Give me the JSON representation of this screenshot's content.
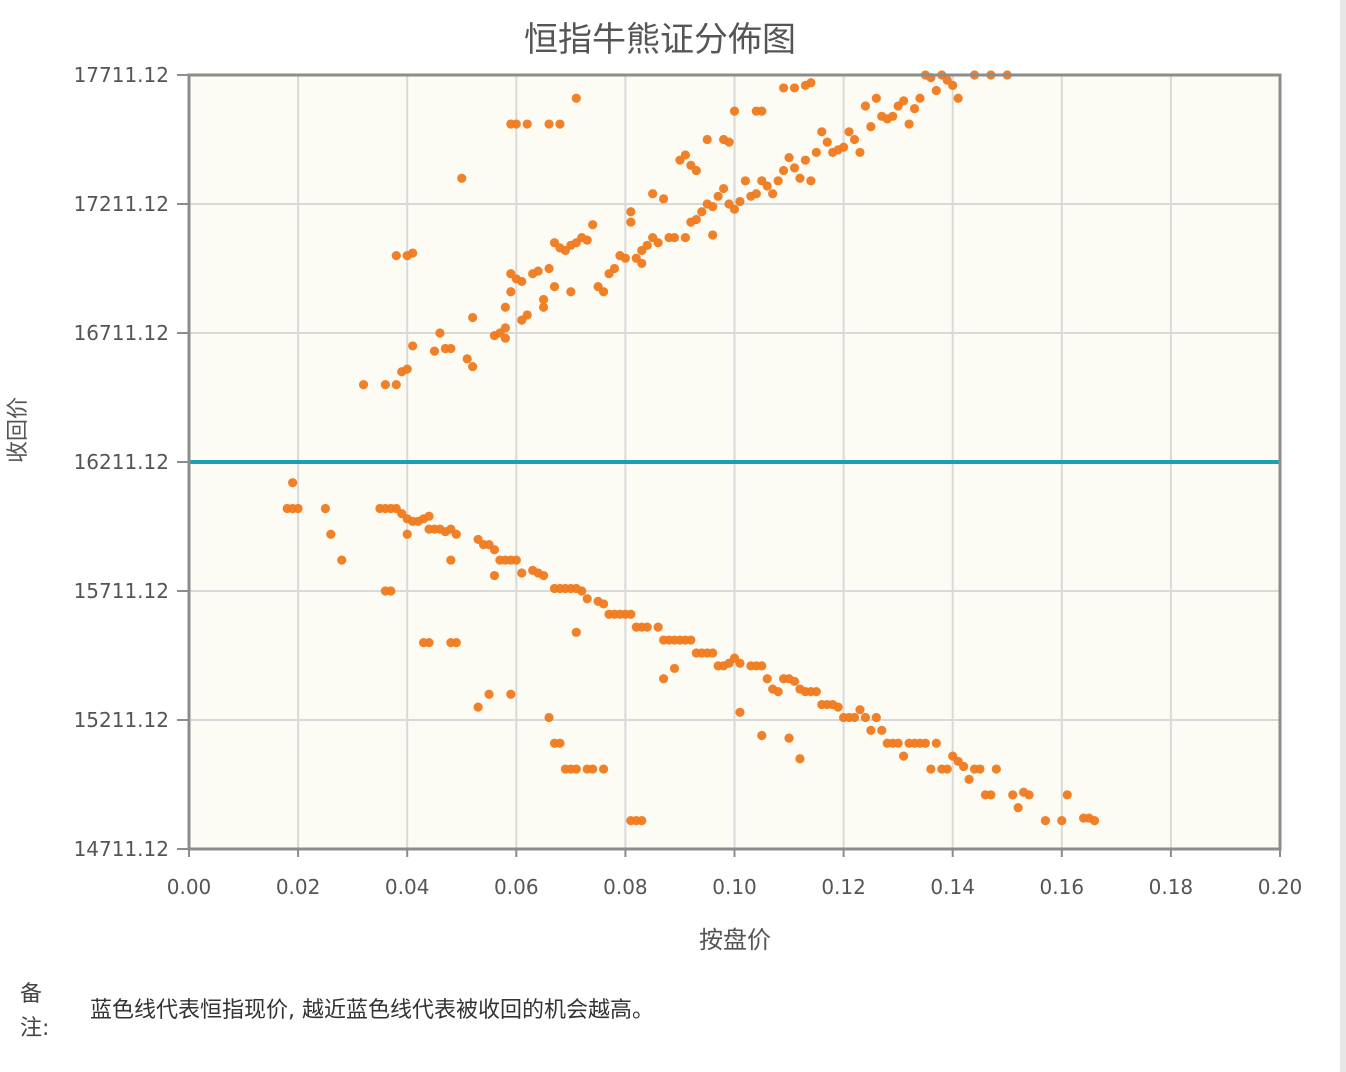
{
  "chart_data": {
    "type": "scatter",
    "title": "恒指牛熊证分佈图",
    "xlabel": "按盘价",
    "ylabel": "收回价",
    "xlim": [
      0,
      0.2
    ],
    "ylim": [
      14711.12,
      17711.12
    ],
    "x_ticks": [
      "0.00",
      "0.02",
      "0.04",
      "0.06",
      "0.08",
      "0.10",
      "0.12",
      "0.14",
      "0.16",
      "0.18",
      "0.20"
    ],
    "y_ticks": [
      "14711.12",
      "15211.12",
      "15711.12",
      "16211.12",
      "16711.12",
      "17211.12",
      "17711.12"
    ],
    "reference_line": {
      "y": 16211.12,
      "color": "#1aa0b3"
    },
    "grid": true,
    "colors": {
      "points": "#f07a1e",
      "plot_bg": "#fcfbf4",
      "grid": "#d9d9d9",
      "axis": "#8c8c8c"
    },
    "series": [
      {
        "points": [
          [
            0.032,
            16511
          ],
          [
            0.036,
            16511
          ],
          [
            0.038,
            16511
          ],
          [
            0.039,
            16561
          ],
          [
            0.04,
            16571
          ],
          [
            0.041,
            16661
          ],
          [
            0.038,
            17011
          ],
          [
            0.04,
            17011
          ],
          [
            0.041,
            17021
          ],
          [
            0.046,
            16711
          ],
          [
            0.045,
            16641
          ],
          [
            0.047,
            16651
          ],
          [
            0.048,
            16651
          ],
          [
            0.05,
            17311
          ],
          [
            0.051,
            16611
          ],
          [
            0.052,
            16581
          ],
          [
            0.052,
            16771
          ],
          [
            0.056,
            16701
          ],
          [
            0.057,
            16711
          ],
          [
            0.058,
            16691
          ],
          [
            0.058,
            16731
          ],
          [
            0.058,
            16811
          ],
          [
            0.059,
            16871
          ],
          [
            0.059,
            16941
          ],
          [
            0.06,
            16921
          ],
          [
            0.061,
            16911
          ],
          [
            0.061,
            16761
          ],
          [
            0.062,
            16781
          ],
          [
            0.063,
            16941
          ],
          [
            0.064,
            16951
          ],
          [
            0.065,
            16841
          ],
          [
            0.065,
            16811
          ],
          [
            0.066,
            16961
          ],
          [
            0.067,
            16891
          ],
          [
            0.067,
            17061
          ],
          [
            0.068,
            17041
          ],
          [
            0.069,
            17031
          ],
          [
            0.07,
            17051
          ],
          [
            0.07,
            16871
          ],
          [
            0.071,
            17061
          ],
          [
            0.072,
            17081
          ],
          [
            0.073,
            17071
          ],
          [
            0.074,
            17131
          ],
          [
            0.075,
            16891
          ],
          [
            0.076,
            16871
          ],
          [
            0.077,
            16941
          ],
          [
            0.078,
            16961
          ],
          [
            0.079,
            17011
          ],
          [
            0.08,
            17001
          ],
          [
            0.081,
            17141
          ],
          [
            0.081,
            17181
          ],
          [
            0.082,
            17001
          ],
          [
            0.083,
            16981
          ],
          [
            0.083,
            17031
          ],
          [
            0.084,
            17051
          ],
          [
            0.085,
            17251
          ],
          [
            0.085,
            17081
          ],
          [
            0.086,
            17061
          ],
          [
            0.087,
            17231
          ],
          [
            0.088,
            17081
          ],
          [
            0.089,
            17081
          ],
          [
            0.09,
            17381
          ],
          [
            0.091,
            17401
          ],
          [
            0.092,
            17361
          ],
          [
            0.093,
            17341
          ],
          [
            0.091,
            17081
          ],
          [
            0.092,
            17141
          ],
          [
            0.093,
            17151
          ],
          [
            0.094,
            17181
          ],
          [
            0.095,
            17211
          ],
          [
            0.096,
            17201
          ],
          [
            0.096,
            17091
          ],
          [
            0.097,
            17241
          ],
          [
            0.098,
            17271
          ],
          [
            0.099,
            17211
          ],
          [
            0.1,
            17191
          ],
          [
            0.101,
            17221
          ],
          [
            0.102,
            17301
          ],
          [
            0.103,
            17241
          ],
          [
            0.104,
            17251
          ],
          [
            0.105,
            17301
          ],
          [
            0.106,
            17281
          ],
          [
            0.107,
            17251
          ],
          [
            0.108,
            17301
          ],
          [
            0.109,
            17341
          ],
          [
            0.11,
            17391
          ],
          [
            0.111,
            17351
          ],
          [
            0.112,
            17311
          ],
          [
            0.113,
            17381
          ],
          [
            0.114,
            17301
          ],
          [
            0.115,
            17411
          ],
          [
            0.116,
            17491
          ],
          [
            0.117,
            17451
          ],
          [
            0.118,
            17411
          ],
          [
            0.119,
            17421
          ],
          [
            0.12,
            17431
          ],
          [
            0.121,
            17491
          ],
          [
            0.122,
            17461
          ],
          [
            0.123,
            17411
          ],
          [
            0.124,
            17591
          ],
          [
            0.125,
            17511
          ],
          [
            0.126,
            17621
          ],
          [
            0.127,
            17551
          ],
          [
            0.128,
            17541
          ],
          [
            0.129,
            17551
          ],
          [
            0.13,
            17591
          ],
          [
            0.131,
            17611
          ],
          [
            0.132,
            17521
          ],
          [
            0.133,
            17581
          ],
          [
            0.134,
            17621
          ],
          [
            0.135,
            17711
          ],
          [
            0.136,
            17701
          ],
          [
            0.137,
            17651
          ],
          [
            0.138,
            17711
          ],
          [
            0.139,
            17691
          ],
          [
            0.14,
            17671
          ],
          [
            0.141,
            17621
          ],
          [
            0.144,
            17711
          ],
          [
            0.147,
            17711
          ],
          [
            0.15,
            17711
          ],
          [
            0.099,
            17451
          ],
          [
            0.1,
            17571
          ],
          [
            0.104,
            17571
          ],
          [
            0.105,
            17571
          ],
          [
            0.109,
            17661
          ],
          [
            0.111,
            17661
          ],
          [
            0.113,
            17671
          ],
          [
            0.114,
            17681
          ],
          [
            0.059,
            17521
          ],
          [
            0.06,
            17521
          ],
          [
            0.062,
            17521
          ],
          [
            0.066,
            17521
          ],
          [
            0.068,
            17521
          ],
          [
            0.071,
            17621
          ],
          [
            0.095,
            17461
          ],
          [
            0.098,
            17461
          ]
        ]
      },
      {
        "points": [
          [
            0.018,
            16031
          ],
          [
            0.019,
            16031
          ],
          [
            0.02,
            16031
          ],
          [
            0.019,
            16131
          ],
          [
            0.025,
            16031
          ],
          [
            0.026,
            15931
          ],
          [
            0.028,
            15831
          ],
          [
            0.035,
            16031
          ],
          [
            0.036,
            16031
          ],
          [
            0.037,
            16031
          ],
          [
            0.038,
            16031
          ],
          [
            0.039,
            16011
          ],
          [
            0.04,
            15991
          ],
          [
            0.04,
            15931
          ],
          [
            0.041,
            15981
          ],
          [
            0.042,
            15981
          ],
          [
            0.043,
            15991
          ],
          [
            0.044,
            16001
          ],
          [
            0.044,
            15951
          ],
          [
            0.045,
            15951
          ],
          [
            0.046,
            15951
          ],
          [
            0.047,
            15941
          ],
          [
            0.048,
            15951
          ],
          [
            0.049,
            15931
          ],
          [
            0.048,
            15831
          ],
          [
            0.036,
            15711
          ],
          [
            0.037,
            15711
          ],
          [
            0.043,
            15511
          ],
          [
            0.044,
            15511
          ],
          [
            0.048,
            15511
          ],
          [
            0.049,
            15511
          ],
          [
            0.053,
            15911
          ],
          [
            0.054,
            15891
          ],
          [
            0.055,
            15891
          ],
          [
            0.056,
            15871
          ],
          [
            0.056,
            15771
          ],
          [
            0.057,
            15831
          ],
          [
            0.058,
            15831
          ],
          [
            0.059,
            15831
          ],
          [
            0.06,
            15831
          ],
          [
            0.061,
            15781
          ],
          [
            0.063,
            15791
          ],
          [
            0.064,
            15781
          ],
          [
            0.065,
            15771
          ],
          [
            0.067,
            15721
          ],
          [
            0.068,
            15721
          ],
          [
            0.069,
            15721
          ],
          [
            0.07,
            15721
          ],
          [
            0.071,
            15721
          ],
          [
            0.072,
            15711
          ],
          [
            0.073,
            15681
          ],
          [
            0.075,
            15671
          ],
          [
            0.076,
            15661
          ],
          [
            0.077,
            15621
          ],
          [
            0.078,
            15621
          ],
          [
            0.079,
            15621
          ],
          [
            0.08,
            15621
          ],
          [
            0.081,
            15621
          ],
          [
            0.082,
            15571
          ],
          [
            0.083,
            15571
          ],
          [
            0.084,
            15571
          ],
          [
            0.086,
            15571
          ],
          [
            0.087,
            15521
          ],
          [
            0.088,
            15521
          ],
          [
            0.089,
            15521
          ],
          [
            0.09,
            15521
          ],
          [
            0.091,
            15521
          ],
          [
            0.092,
            15521
          ],
          [
            0.093,
            15471
          ],
          [
            0.094,
            15471
          ],
          [
            0.095,
            15471
          ],
          [
            0.096,
            15471
          ],
          [
            0.097,
            15421
          ],
          [
            0.098,
            15421
          ],
          [
            0.099,
            15431
          ],
          [
            0.1,
            15451
          ],
          [
            0.101,
            15431
          ],
          [
            0.103,
            15421
          ],
          [
            0.104,
            15421
          ],
          [
            0.105,
            15421
          ],
          [
            0.106,
            15371
          ],
          [
            0.107,
            15331
          ],
          [
            0.108,
            15321
          ],
          [
            0.109,
            15371
          ],
          [
            0.11,
            15371
          ],
          [
            0.111,
            15361
          ],
          [
            0.112,
            15331
          ],
          [
            0.113,
            15321
          ],
          [
            0.114,
            15321
          ],
          [
            0.115,
            15321
          ],
          [
            0.116,
            15271
          ],
          [
            0.117,
            15271
          ],
          [
            0.118,
            15271
          ],
          [
            0.119,
            15261
          ],
          [
            0.12,
            15221
          ],
          [
            0.121,
            15221
          ],
          [
            0.122,
            15221
          ],
          [
            0.123,
            15251
          ],
          [
            0.124,
            15221
          ],
          [
            0.125,
            15171
          ],
          [
            0.126,
            15221
          ],
          [
            0.127,
            15171
          ],
          [
            0.128,
            15121
          ],
          [
            0.129,
            15121
          ],
          [
            0.13,
            15121
          ],
          [
            0.131,
            15071
          ],
          [
            0.132,
            15121
          ],
          [
            0.133,
            15121
          ],
          [
            0.134,
            15121
          ],
          [
            0.135,
            15121
          ],
          [
            0.136,
            15021
          ],
          [
            0.137,
            15121
          ],
          [
            0.138,
            15021
          ],
          [
            0.139,
            15021
          ],
          [
            0.14,
            15071
          ],
          [
            0.141,
            15051
          ],
          [
            0.142,
            15031
          ],
          [
            0.143,
            14981
          ],
          [
            0.144,
            15021
          ],
          [
            0.145,
            15021
          ],
          [
            0.146,
            14921
          ],
          [
            0.147,
            14921
          ],
          [
            0.148,
            15021
          ],
          [
            0.151,
            14921
          ],
          [
            0.152,
            14871
          ],
          [
            0.153,
            14931
          ],
          [
            0.154,
            14921
          ],
          [
            0.157,
            14821
          ],
          [
            0.16,
            14821
          ],
          [
            0.161,
            14921
          ],
          [
            0.164,
            14831
          ],
          [
            0.165,
            14831
          ],
          [
            0.166,
            14821
          ],
          [
            0.053,
            15261
          ],
          [
            0.055,
            15311
          ],
          [
            0.059,
            15311
          ],
          [
            0.066,
            15221
          ],
          [
            0.067,
            15121
          ],
          [
            0.068,
            15121
          ],
          [
            0.069,
            15021
          ],
          [
            0.07,
            15021
          ],
          [
            0.071,
            15021
          ],
          [
            0.073,
            15021
          ],
          [
            0.074,
            15021
          ],
          [
            0.076,
            15021
          ],
          [
            0.071,
            15551
          ],
          [
            0.081,
            14821
          ],
          [
            0.082,
            14821
          ],
          [
            0.083,
            14821
          ],
          [
            0.087,
            15371
          ],
          [
            0.089,
            15411
          ],
          [
            0.101,
            15241
          ],
          [
            0.105,
            15151
          ],
          [
            0.11,
            15141
          ],
          [
            0.112,
            15061
          ]
        ]
      }
    ]
  },
  "note": {
    "label": "备注:",
    "text": "蓝色线代表恒指现价, 越近蓝色线代表被收回的机会越高。"
  }
}
